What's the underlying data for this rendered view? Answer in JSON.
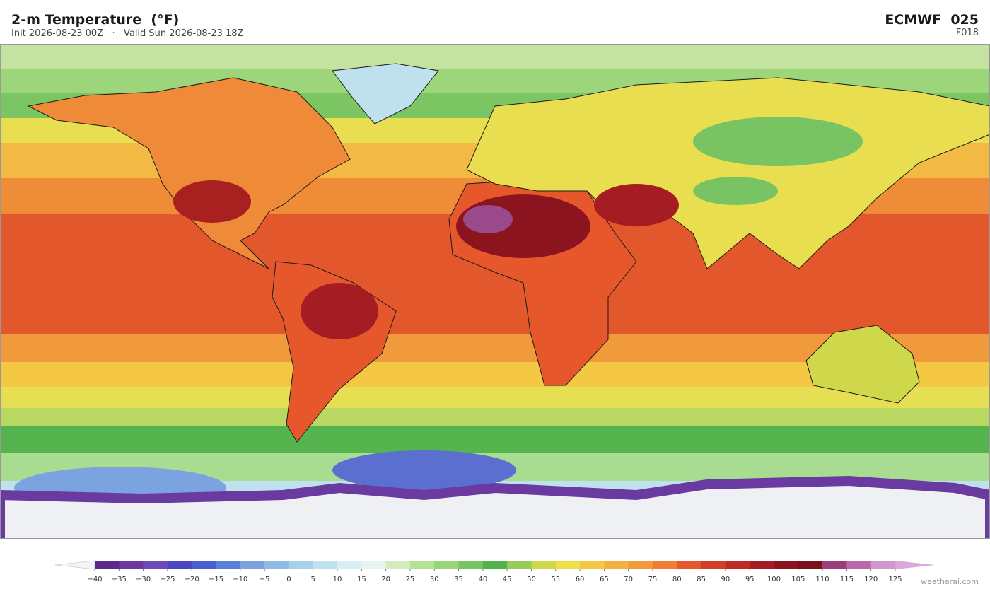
{
  "header": {
    "title": "2-m Temperature  (°F)",
    "subtitle": "Init 2026-08-23 00Z   ·   Valid Sun 2026-08-23 18Z",
    "model": "ECMWF  025",
    "forecast_hour": "F018"
  },
  "colorbar": {
    "ticks": [
      {
        "value": -40,
        "label": "−40"
      },
      {
        "value": -35,
        "label": "−35"
      },
      {
        "value": -30,
        "label": "−30"
      },
      {
        "value": -25,
        "label": "−25"
      },
      {
        "value": -20,
        "label": "−20"
      },
      {
        "value": -15,
        "label": "−15"
      },
      {
        "value": -10,
        "label": "−10"
      },
      {
        "value": -5,
        "label": "−5"
      },
      0,
      5,
      10,
      15,
      20,
      25,
      30,
      35,
      40,
      45,
      50,
      55,
      60,
      65,
      70,
      75,
      80,
      85,
      90,
      95,
      100,
      105,
      110,
      115,
      120,
      125
    ],
    "colors": [
      "#5b2a8c",
      "#6a3aa0",
      "#6e4ab8",
      "#4a48c0",
      "#4a5fcc",
      "#5a7fd6",
      "#7aa3e0",
      "#8fbce6",
      "#a7d1ea",
      "#bfe1ee",
      "#d7eef2",
      "#e8f5ee",
      "#d2ecc0",
      "#b5e295",
      "#98d478",
      "#78c462",
      "#52b34c",
      "#98cc58",
      "#cfd84a",
      "#efe04a",
      "#f5c842",
      "#f4b03e",
      "#f29a3a",
      "#ef7e34",
      "#e6572c",
      "#d43e28",
      "#c02a24",
      "#a51d22",
      "#8c141e",
      "#7a101a",
      "#9a3d78",
      "#b86aa8",
      "#cf98cc"
    ],
    "under_color": "#f4f4f8",
    "over_color": "#dba8da"
  },
  "footer": {
    "credit": "weatherai.com"
  }
}
